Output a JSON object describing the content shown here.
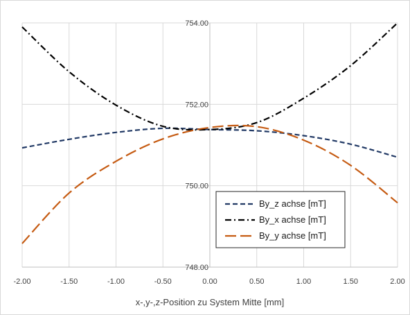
{
  "chart_data": {
    "type": "line",
    "title": "",
    "xlabel": "x-,y-,z-Position zu System Mitte [mm]",
    "ylabel": "",
    "xlim": [
      -2.0,
      2.0
    ],
    "ylim": [
      748.0,
      754.0
    ],
    "x_ticks": [
      "-2.00",
      "-1.50",
      "-1.00",
      "-0.50",
      "0.00",
      "0.50",
      "1.00",
      "1.50",
      "2.00"
    ],
    "y_ticks": [
      "748.00",
      "750.00",
      "752.00",
      "754.00"
    ],
    "grid": true,
    "legend_position": "lower-right",
    "x": [
      -2.0,
      -1.5,
      -1.0,
      -0.5,
      0.0,
      0.5,
      1.0,
      1.5,
      2.0
    ],
    "series": [
      {
        "name": "By_z achse [mT]",
        "color": "#203864",
        "style": "dash",
        "values": [
          750.93,
          751.14,
          751.31,
          751.41,
          751.38,
          751.35,
          751.23,
          751.02,
          750.7
        ]
      },
      {
        "name": "By_x achse [mT]",
        "color": "#000000",
        "style": "dashdot",
        "values": [
          753.9,
          752.8,
          751.98,
          751.46,
          751.38,
          751.55,
          752.15,
          752.95,
          754.0
        ]
      },
      {
        "name": "By_y achse [mT]",
        "color": "#c55a11",
        "style": "longdash",
        "values": [
          748.58,
          749.82,
          750.6,
          751.15,
          751.43,
          751.45,
          751.12,
          750.5,
          749.58
        ]
      }
    ]
  }
}
